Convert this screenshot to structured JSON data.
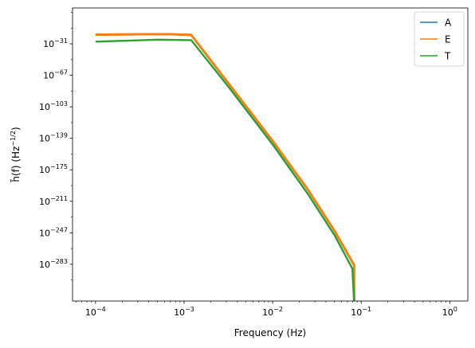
{
  "chart_data": {
    "type": "line",
    "title": "",
    "xlabel": "Frequency (Hz)",
    "ylabel_main": "h̃(f) (Hz",
    "ylabel_exp": "−1/2",
    "ylabel_close": ")",
    "xscale": "log",
    "yscale": "log",
    "xlim": [
      5.5e-05,
      1.6
    ],
    "ylim_exponent": [
      -325,
      10
    ],
    "grid": false,
    "legend_position": "top-right",
    "x_ticks": [
      {
        "base": "10",
        "exp": "−4",
        "value": 0.0001
      },
      {
        "base": "10",
        "exp": "−3",
        "value": 0.001
      },
      {
        "base": "10",
        "exp": "−2",
        "value": 0.01
      },
      {
        "base": "10",
        "exp": "−1",
        "value": 0.1
      },
      {
        "base": "10",
        "exp": "0",
        "value": 1
      }
    ],
    "y_ticks": [
      {
        "base": "10",
        "exp": "−31",
        "value_exponent": -31
      },
      {
        "base": "10",
        "exp": "−67",
        "value_exponent": -67
      },
      {
        "base": "10",
        "exp": "−103",
        "value_exponent": -103
      },
      {
        "base": "10",
        "exp": "−139",
        "value_exponent": -139
      },
      {
        "base": "10",
        "exp": "−175",
        "value_exponent": -175
      },
      {
        "base": "10",
        "exp": "−211",
        "value_exponent": -211
      },
      {
        "base": "10",
        "exp": "−247",
        "value_exponent": -247
      },
      {
        "base": "10",
        "exp": "−283",
        "value_exponent": -283
      }
    ],
    "series": [
      {
        "name": "A",
        "color": "#1f77b4",
        "points_log10": [
          [
            -4,
            -20.5
          ],
          [
            -3.2,
            -19.9
          ],
          [
            -2.92,
            -20.8
          ],
          [
            -2.5,
            -76
          ],
          [
            -2.0,
            -142
          ],
          [
            -1.6,
            -198
          ],
          [
            -1.3,
            -245
          ],
          [
            -1.08,
            -284
          ],
          [
            -1.08,
            -326
          ]
        ]
      },
      {
        "name": "E",
        "color": "#ff7f0e",
        "points_log10": [
          [
            -4,
            -20.5
          ],
          [
            -3.2,
            -19.9
          ],
          [
            -2.92,
            -20.8
          ],
          [
            -2.5,
            -76
          ],
          [
            -2.0,
            -142
          ],
          [
            -1.6,
            -198
          ],
          [
            -1.3,
            -245
          ],
          [
            -1.08,
            -284
          ],
          [
            -1.08,
            -326
          ]
        ]
      },
      {
        "name": "T",
        "color": "#2ca02c",
        "points_log10": [
          [
            -4,
            -28.5
          ],
          [
            -3.6,
            -27.3
          ],
          [
            -3.3,
            -26.2
          ],
          [
            -2.92,
            -26.8
          ],
          [
            -2.5,
            -80
          ],
          [
            -2.0,
            -146
          ],
          [
            -1.6,
            -203
          ],
          [
            -1.3,
            -250
          ],
          [
            -1.1,
            -288
          ],
          [
            -1.08,
            -326
          ]
        ]
      }
    ]
  }
}
